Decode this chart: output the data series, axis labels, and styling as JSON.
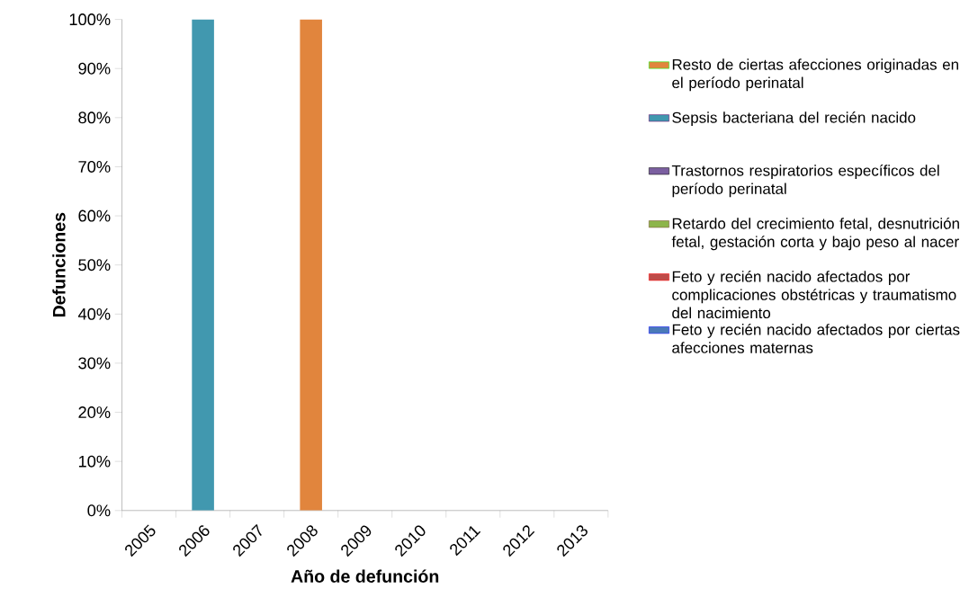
{
  "chart_data": {
    "type": "bar",
    "stacked": true,
    "xlabel": "Año de defunción",
    "ylabel": "Defunciones",
    "categories": [
      "2005",
      "2006",
      "2007",
      "2008",
      "2009",
      "2010",
      "2011",
      "2012",
      "2013"
    ],
    "ylim": [
      0,
      100
    ],
    "yticks": [
      {
        "value": 0,
        "label": "0%"
      },
      {
        "value": 10,
        "label": "10%"
      },
      {
        "value": 20,
        "label": "20%"
      },
      {
        "value": 30,
        "label": "30%"
      },
      {
        "value": 40,
        "label": "40%"
      },
      {
        "value": 50,
        "label": "50%"
      },
      {
        "value": 60,
        "label": "60%"
      },
      {
        "value": 70,
        "label": "70%"
      },
      {
        "value": 80,
        "label": "80%"
      },
      {
        "value": 90,
        "label": "90%"
      },
      {
        "value": 100,
        "label": "100%"
      }
    ],
    "legend": "right",
    "series": [
      {
        "name": "Feto y recién nacido afectados por ciertas afecciones maternas",
        "color": "#4a7ab8",
        "values": [
          0,
          0,
          0,
          0,
          0,
          0,
          0,
          0,
          0
        ]
      },
      {
        "name": "Feto y recién nacido afectados por complicaciones obstétricas y traumatismo del nacimiento",
        "color": "#be4b48",
        "values": [
          0,
          0,
          0,
          0,
          0,
          0,
          0,
          0,
          0
        ]
      },
      {
        "name": "Retardo del crecimiento fetal, desnutrición fetal, gestación corta y bajo peso al nacer",
        "color": "#8db54a",
        "values": [
          0,
          0,
          0,
          0,
          0,
          0,
          0,
          0,
          0
        ]
      },
      {
        "name": "Trastornos respiratorios específicos del período perinatal",
        "color": "#7b5fa0",
        "values": [
          0,
          0,
          0,
          0,
          0,
          0,
          0,
          0,
          0
        ]
      },
      {
        "name": "Sepsis bacteriana del recién nacido",
        "color": "#4198af",
        "values": [
          0,
          100,
          0,
          0,
          0,
          0,
          0,
          0,
          0
        ]
      },
      {
        "name": "Resto de ciertas afecciones originadas en el período perinatal",
        "color": "#e1853d",
        "values": [
          0,
          0,
          0,
          100,
          0,
          0,
          0,
          0,
          0
        ]
      }
    ]
  }
}
